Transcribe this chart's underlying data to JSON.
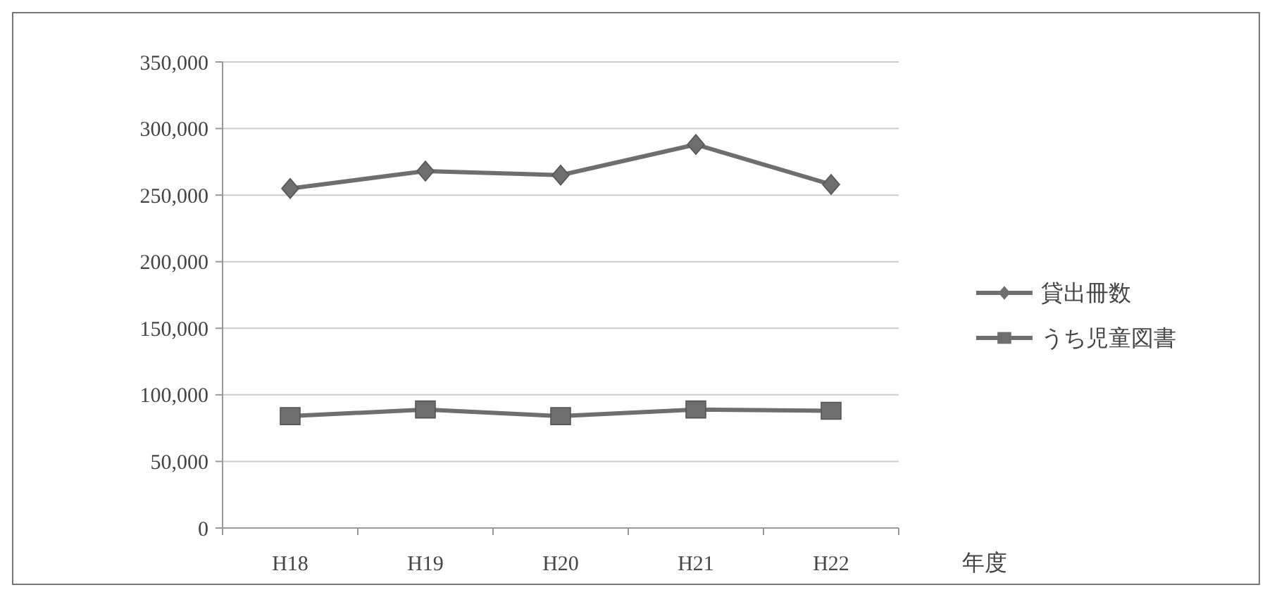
{
  "chart_data": {
    "type": "line",
    "xlabel": "年度",
    "categories": [
      "H18",
      "H19",
      "H20",
      "H21",
      "H22"
    ],
    "series": [
      {
        "name": "貸出冊数",
        "color": "#6e6e6e",
        "marker": "diamond",
        "values": [
          255000,
          268000,
          265000,
          288000,
          258000
        ]
      },
      {
        "name": "うち児童図書",
        "color": "#6e6e6e",
        "marker": "square",
        "values": [
          84000,
          89000,
          84000,
          89000,
          88000
        ]
      }
    ],
    "ylim": [
      0,
      350000
    ],
    "yticks": [
      {
        "value": 0,
        "label": "0"
      },
      {
        "value": 50000,
        "label": "50,000"
      },
      {
        "value": 100000,
        "label": "100,000"
      },
      {
        "value": 150000,
        "label": "150,000"
      },
      {
        "value": 200000,
        "label": "200,000"
      },
      {
        "value": 250000,
        "label": "250,000"
      },
      {
        "value": 300000,
        "label": "300,000"
      },
      {
        "value": 350000,
        "label": "350,000"
      }
    ],
    "grid": "y",
    "legend": "right"
  }
}
